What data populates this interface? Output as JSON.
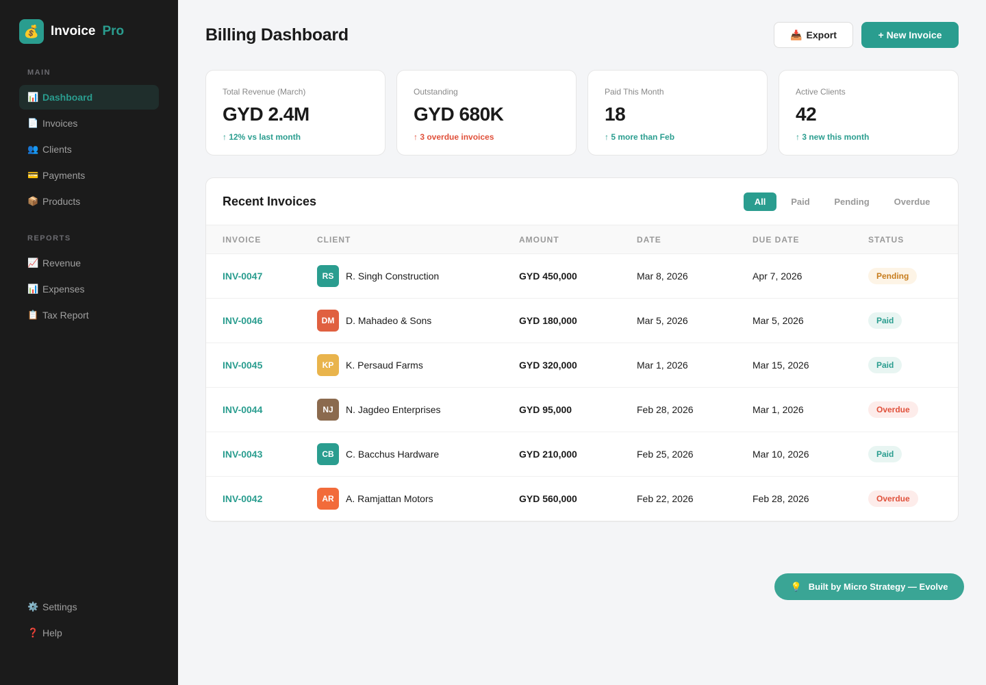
{
  "brand": {
    "name": "Invoice",
    "suffix": "Pro",
    "icon": "money-bag-icon"
  },
  "sidebar": {
    "main_label": "MAIN",
    "reports_label": "REPORTS",
    "main": [
      {
        "label": "Dashboard",
        "icon": "📊"
      },
      {
        "label": "Invoices",
        "icon": "📄"
      },
      {
        "label": "Clients",
        "icon": "👥"
      },
      {
        "label": "Payments",
        "icon": "💳"
      },
      {
        "label": "Products",
        "icon": "📦"
      }
    ],
    "reports": [
      {
        "label": "Revenue",
        "icon": "📈"
      },
      {
        "label": "Expenses",
        "icon": "📊"
      },
      {
        "label": "Tax Report",
        "icon": "📋"
      }
    ],
    "bottom": [
      {
        "label": "Settings",
        "icon": "⚙️"
      },
      {
        "label": "Help",
        "icon": "❓"
      }
    ]
  },
  "header": {
    "title": "Billing Dashboard",
    "export": "Export",
    "new_invoice": "+ New Invoice"
  },
  "stats": [
    {
      "label": "Total Revenue (March)",
      "value": "GYD 2.4M",
      "sub": "↑ 12% vs last month"
    },
    {
      "label": "Outstanding",
      "value": "GYD 680K",
      "sub": "↑ 3 overdue invoices"
    },
    {
      "label": "Paid This Month",
      "value": "18",
      "sub": "↑ 5 more than Feb"
    },
    {
      "label": "Active Clients",
      "value": "42",
      "sub": "↑ 3 new this month"
    }
  ],
  "invoices": {
    "title": "Recent Invoices",
    "filters": [
      "All",
      "Paid",
      "Pending",
      "Overdue"
    ],
    "columns": [
      "INVOICE",
      "CLIENT",
      "AMOUNT",
      "DATE",
      "DUE DATE",
      "STATUS"
    ],
    "rows": [
      {
        "id": "INV-0047",
        "initials": "RS",
        "color": "#2a9d8f",
        "client": "R. Singh Construction",
        "amount": "GYD 450,000",
        "date": "Mar 8, 2026",
        "due": "Apr 7, 2026",
        "status": "Pending"
      },
      {
        "id": "INV-0046",
        "initials": "DM",
        "color": "#e06040",
        "client": "D. Mahadeo & Sons",
        "amount": "GYD 180,000",
        "date": "Mar 5, 2026",
        "due": "Mar 5, 2026",
        "status": "Paid"
      },
      {
        "id": "INV-0045",
        "initials": "KP",
        "color": "#e9b44c",
        "client": "K. Persaud Farms",
        "amount": "GYD 320,000",
        "date": "Mar 1, 2026",
        "due": "Mar 15, 2026",
        "status": "Paid"
      },
      {
        "id": "INV-0044",
        "initials": "NJ",
        "color": "#8b6a4e",
        "client": "N. Jagdeo Enterprises",
        "amount": "GYD 95,000",
        "date": "Feb 28, 2026",
        "due": "Mar 1, 2026",
        "status": "Overdue"
      },
      {
        "id": "INV-0043",
        "initials": "CB",
        "color": "#2a9d8f",
        "client": "C. Bacchus Hardware",
        "amount": "GYD 210,000",
        "date": "Feb 25, 2026",
        "due": "Mar 10, 2026",
        "status": "Paid"
      },
      {
        "id": "INV-0042",
        "initials": "AR",
        "color": "#f26b3a",
        "client": "A. Ramjattan Motors",
        "amount": "GYD 560,000",
        "date": "Feb 22, 2026",
        "due": "Feb 28, 2026",
        "status": "Overdue"
      }
    ]
  },
  "footer": {
    "label": "Built by Micro Strategy — Evolve"
  }
}
